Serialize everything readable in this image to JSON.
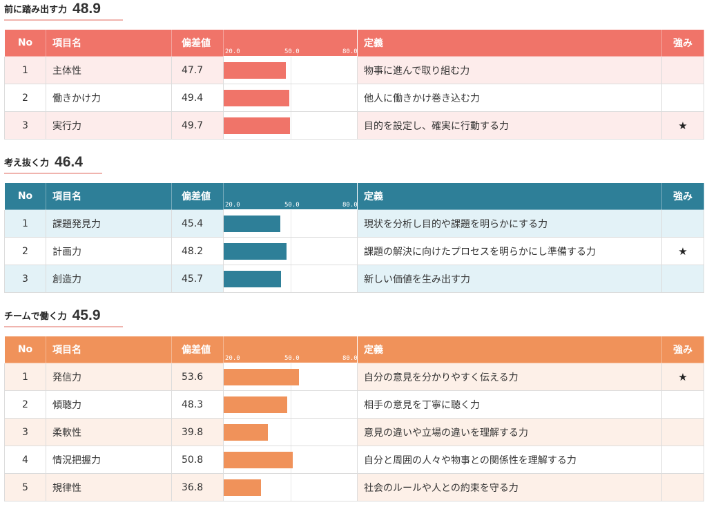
{
  "columns": {
    "no": "No",
    "item": "項目名",
    "value": "偏差値",
    "definition": "定義",
    "strength": "強み"
  },
  "scale": {
    "min": 20,
    "mid": 50,
    "max": 80,
    "labels": [
      "20.0",
      "50.0",
      "80.0"
    ]
  },
  "chart_data": [
    {
      "type": "bar",
      "title": "前に踏み出す力",
      "score": "48.9",
      "color": "#f07469",
      "row_tint": "#fdeceb",
      "xlim": [
        20,
        80
      ],
      "rows": [
        {
          "no": "1",
          "name": "主体性",
          "value": 47.7,
          "value_label": "47.7",
          "definition": "物事に進んで取り組む力",
          "strength": ""
        },
        {
          "no": "2",
          "name": "働きかけ力",
          "value": 49.4,
          "value_label": "49.4",
          "definition": "他人に働きかけ巻き込む力",
          "strength": ""
        },
        {
          "no": "3",
          "name": "実行力",
          "value": 49.7,
          "value_label": "49.7",
          "definition": "目的を設定し、確実に行動する力",
          "strength": "★"
        }
      ]
    },
    {
      "type": "bar",
      "title": "考え抜く力",
      "score": "46.4",
      "color": "#2e7f98",
      "row_tint": "#e3f2f7",
      "xlim": [
        20,
        80
      ],
      "rows": [
        {
          "no": "1",
          "name": "課題発見力",
          "value": 45.4,
          "value_label": "45.4",
          "definition": "現状を分析し目的や課題を明らかにする力",
          "strength": ""
        },
        {
          "no": "2",
          "name": "計画力",
          "value": 48.2,
          "value_label": "48.2",
          "definition": "課題の解決に向けたプロセスを明らかにし準備する力",
          "strength": "★"
        },
        {
          "no": "3",
          "name": "創造力",
          "value": 45.7,
          "value_label": "45.7",
          "definition": "新しい価値を生み出す力",
          "strength": ""
        }
      ]
    },
    {
      "type": "bar",
      "title": "チームで働く力",
      "score": "45.9",
      "color": "#f0925a",
      "row_tint": "#fdf0e8",
      "xlim": [
        20,
        80
      ],
      "rows": [
        {
          "no": "1",
          "name": "発信力",
          "value": 53.6,
          "value_label": "53.6",
          "definition": "自分の意見を分かりやすく伝える力",
          "strength": "★"
        },
        {
          "no": "2",
          "name": "傾聴力",
          "value": 48.3,
          "value_label": "48.3",
          "definition": "相手の意見を丁寧に聴く力",
          "strength": ""
        },
        {
          "no": "3",
          "name": "柔軟性",
          "value": 39.8,
          "value_label": "39.8",
          "definition": "意見の違いや立場の違いを理解する力",
          "strength": ""
        },
        {
          "no": "4",
          "name": "情況把握力",
          "value": 50.8,
          "value_label": "50.8",
          "definition": "自分と周囲の人々や物事との関係性を理解する力",
          "strength": ""
        },
        {
          "no": "5",
          "name": "規律性",
          "value": 36.8,
          "value_label": "36.8",
          "definition": "社会のルールや人との約束を守る力",
          "strength": ""
        }
      ]
    }
  ]
}
